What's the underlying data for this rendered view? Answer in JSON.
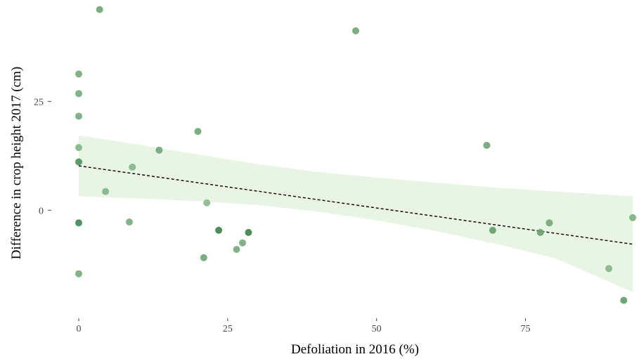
{
  "chart_data": {
    "type": "scatter",
    "xlabel": "Defoliation in 2016 (%)",
    "ylabel": "Difference in crop height 2017 (cm)",
    "x_ticks": [
      0,
      25,
      50,
      75
    ],
    "y_ticks": [
      0,
      25
    ],
    "xlim": [
      -2,
      94
    ],
    "ylim": [
      -24,
      47
    ],
    "grid": false,
    "points": [
      {
        "x": 0,
        "y": 31.3,
        "shade": 0.45
      },
      {
        "x": 0,
        "y": 26.8,
        "shade": 0.45
      },
      {
        "x": 0,
        "y": 21.6,
        "shade": 0.45
      },
      {
        "x": 0,
        "y": 14.4,
        "shade": 0.35
      },
      {
        "x": 0,
        "y": 11.1,
        "shade": 0.75
      },
      {
        "x": 0,
        "y": -2.9,
        "shade": 0.85
      },
      {
        "x": 0,
        "y": -14.6,
        "shade": 0.45
      },
      {
        "x": 3.5,
        "y": 46.1,
        "shade": 0.5
      },
      {
        "x": 4.5,
        "y": 4.3,
        "shade": 0.35
      },
      {
        "x": 8.5,
        "y": -2.7,
        "shade": 0.45
      },
      {
        "x": 9,
        "y": 9.9,
        "shade": 0.35
      },
      {
        "x": 13.5,
        "y": 13.8,
        "shade": 0.5
      },
      {
        "x": 20,
        "y": 18.1,
        "shade": 0.5
      },
      {
        "x": 21,
        "y": -10.9,
        "shade": 0.5
      },
      {
        "x": 21.5,
        "y": 1.7,
        "shade": 0.3
      },
      {
        "x": 23.5,
        "y": -4.6,
        "shade": 0.9
      },
      {
        "x": 26.5,
        "y": -9,
        "shade": 0.45
      },
      {
        "x": 27.5,
        "y": -7.5,
        "shade": 0.45
      },
      {
        "x": 28.5,
        "y": -5.1,
        "shade": 0.9
      },
      {
        "x": 46.5,
        "y": 41.2,
        "shade": 0.5
      },
      {
        "x": 68.5,
        "y": 14.9,
        "shade": 0.5
      },
      {
        "x": 69.5,
        "y": -4.6,
        "shade": 0.6
      },
      {
        "x": 77.5,
        "y": -5.1,
        "shade": 0.6
      },
      {
        "x": 79,
        "y": -2.9,
        "shade": 0.5
      },
      {
        "x": 89,
        "y": -13.4,
        "shade": 0.35
      },
      {
        "x": 91.5,
        "y": -20.7,
        "shade": 0.6
      },
      {
        "x": 93,
        "y": -1.7,
        "shade": 0.4
      }
    ],
    "trend_line": {
      "x": [
        0,
        93
      ],
      "y": [
        10.2,
        -7.8
      ],
      "style": "dashed",
      "color": "#000000"
    },
    "confidence_band": {
      "x": [
        0,
        10,
        20,
        30,
        40,
        50,
        60,
        70,
        80,
        93
      ],
      "upper": [
        17.2,
        15.1,
        12.8,
        10.6,
        8.8,
        7.5,
        6.3,
        5.2,
        4.3,
        3.2
      ],
      "lower": [
        3.2,
        2.7,
        2.1,
        1.2,
        -0.3,
        -2.3,
        -4.8,
        -7.7,
        -11,
        -18.8
      ],
      "color": "#e8f5e4"
    },
    "colors": {
      "point_light": "#b7d8b2",
      "point_dark": "#3f8650",
      "band": "#e8f5e4",
      "axis_text": "#444444"
    }
  }
}
